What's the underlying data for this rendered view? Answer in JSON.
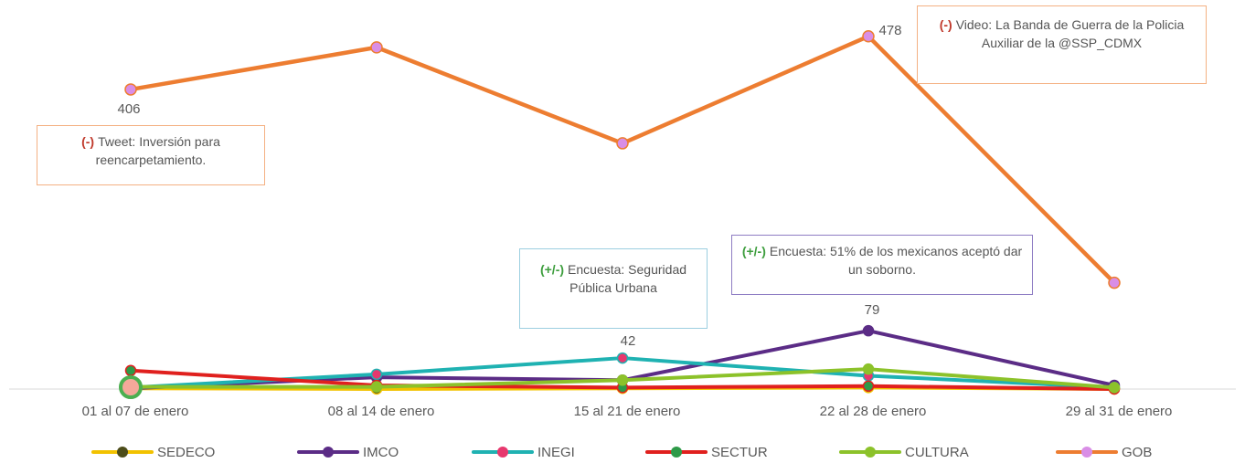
{
  "chart_data": {
    "type": "line",
    "categories": [
      "01 al 07 de enero",
      "08 al 14 de enero",
      "15 al 21 de enero",
      "22 al 28 de enero",
      "29 al 31 de enero"
    ],
    "series": [
      {
        "name": "SEDECO",
        "color": "#F2C200",
        "marker": "#4D4D1A",
        "values": [
          1,
          0,
          1,
          2,
          0
        ]
      },
      {
        "name": "IMCO",
        "color": "#5B2C86",
        "marker": "#5B2C86",
        "values": [
          1,
          16,
          12,
          79,
          5
        ]
      },
      {
        "name": "INEGI",
        "color": "#1FB2B2",
        "marker": "#E7386E",
        "values": [
          2,
          20,
          42,
          18,
          2
        ]
      },
      {
        "name": "SECTUR",
        "color": "#E0201E",
        "marker": "#2E9A48",
        "values": [
          25,
          5,
          2,
          4,
          0
        ]
      },
      {
        "name": "CULTURA",
        "color": "#8CC22A",
        "marker": "#8CC22A",
        "values": [
          3,
          3,
          12,
          27,
          2
        ]
      },
      {
        "name": "GOB",
        "color": "#ED7D31",
        "marker": "#D98EE6",
        "values": [
          406,
          463,
          333,
          478,
          144
        ]
      }
    ],
    "data_labels": [
      {
        "series": "GOB",
        "index": 0,
        "text": "406"
      },
      {
        "series": "GOB",
        "index": 3,
        "text": "478"
      },
      {
        "series": "INEGI",
        "index": 2,
        "text": "42"
      },
      {
        "series": "IMCO",
        "index": 3,
        "text": "79"
      }
    ],
    "ylim": [
      0,
      500
    ],
    "grid": false,
    "legend_position": "bottom",
    "annotations": [
      {
        "tag": "(-)",
        "tag_color": "#C0392B",
        "border": "#F4B183",
        "text": "Tweet: Inversión para reencarpetamiento."
      },
      {
        "tag": "(+/-)",
        "tag_color": "#3E9E3E",
        "border": "#9CCFE0",
        "text": "Encuesta: Seguridad Pública Urbana"
      },
      {
        "tag": "(+/-)",
        "tag_color": "#3E9E3E",
        "border": "#8E7CC3",
        "text": "Encuesta: 51% de los mexicanos aceptó dar un soborno."
      },
      {
        "tag": "(-)",
        "tag_color": "#C0392B",
        "border": "#F4B183",
        "text": "Video: La Banda de Guerra de la Policia Auxiliar de la @SSP_CDMX"
      }
    ]
  }
}
